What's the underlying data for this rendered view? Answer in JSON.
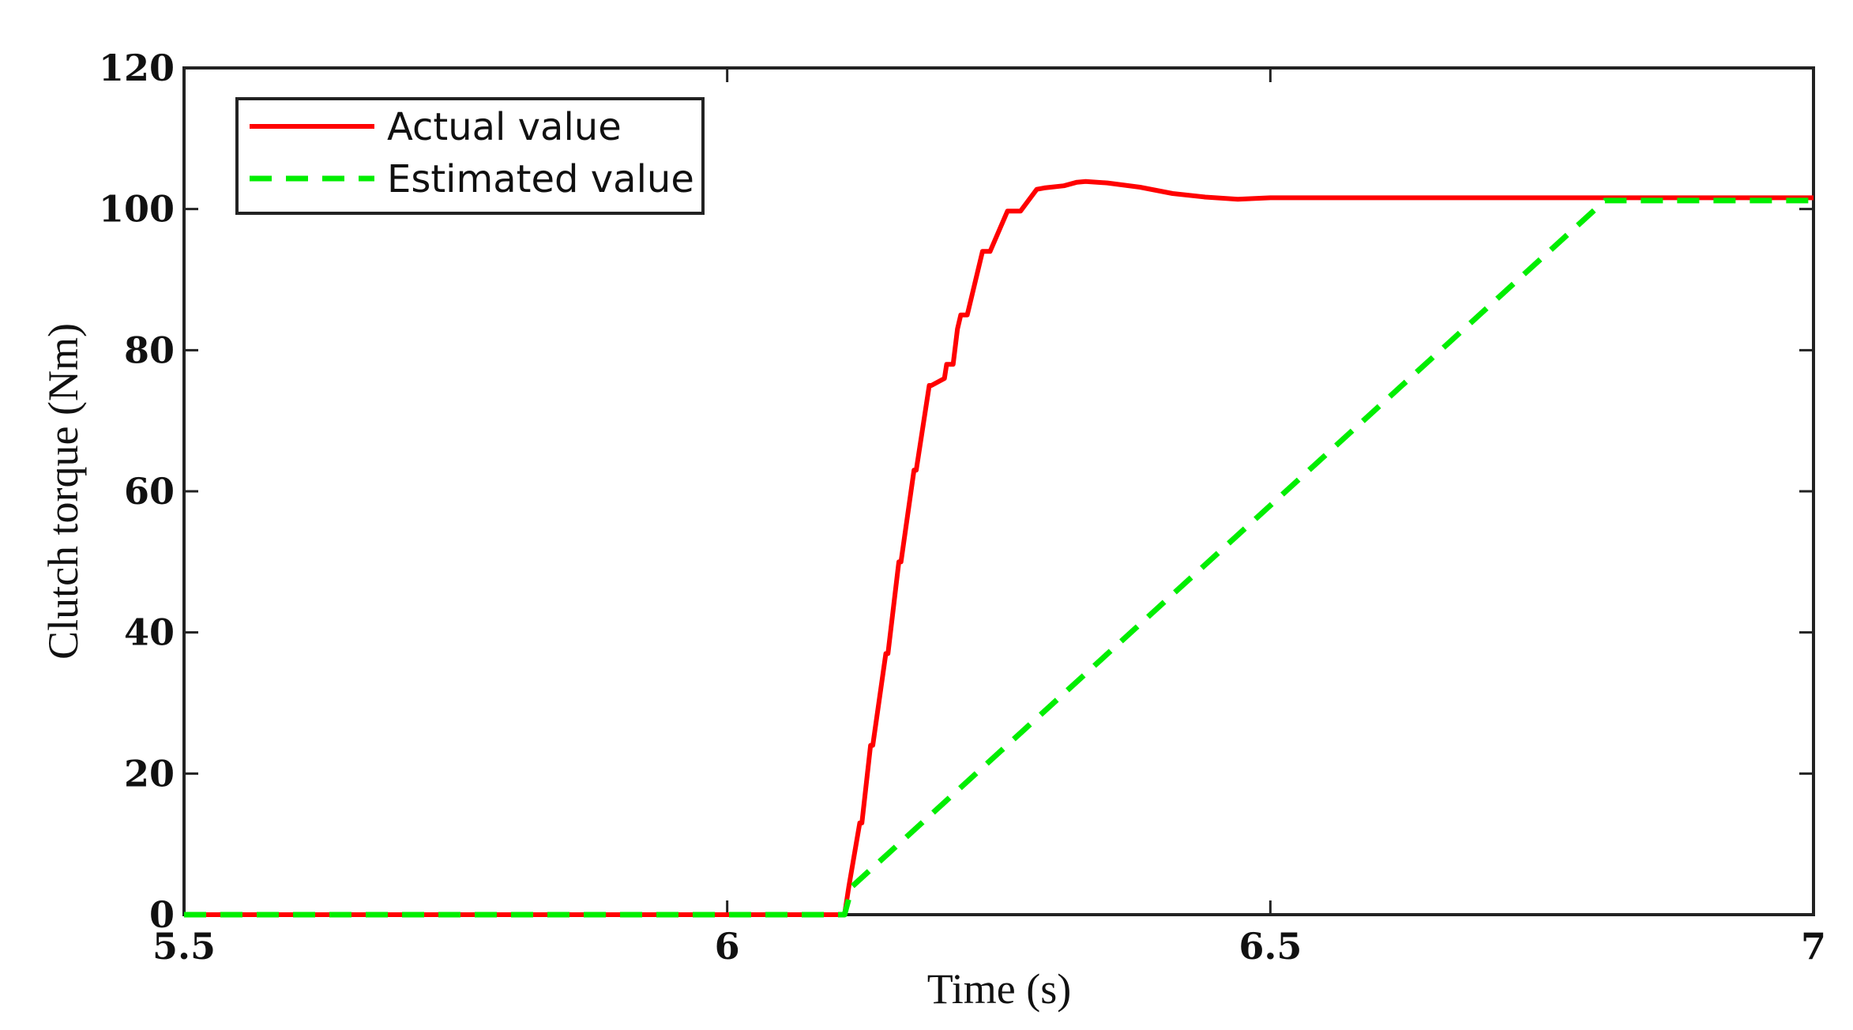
{
  "chart_data": {
    "type": "line",
    "title": "",
    "xlabel": "Time (s)",
    "ylabel": "Clutch torque (Nm)",
    "xlim": [
      5.5,
      7
    ],
    "ylim": [
      0,
      120
    ],
    "xticks": [
      5.5,
      6,
      6.5,
      7
    ],
    "xtick_labels": [
      "5.5",
      "6",
      "6.5",
      "7"
    ],
    "yticks": [
      0,
      20,
      40,
      60,
      80,
      100,
      120
    ],
    "ytick_labels": [
      "0",
      "20",
      "40",
      "60",
      "80",
      "100",
      "120"
    ],
    "grid": false,
    "legend_position": "top-left",
    "series": [
      {
        "name": "Actual value",
        "color": "#ff0000",
        "style": "solid",
        "x": [
          5.5,
          6.108,
          6.112,
          6.122,
          6.124,
          6.132,
          6.134,
          6.146,
          6.148,
          6.158,
          6.16,
          6.172,
          6.174,
          6.186,
          6.188,
          6.2,
          6.202,
          6.208,
          6.212,
          6.215,
          6.221,
          6.235,
          6.242,
          6.258,
          6.27,
          6.285,
          6.292,
          6.31,
          6.322,
          6.33,
          6.35,
          6.38,
          6.41,
          6.44,
          6.47,
          6.5,
          6.53,
          6.56,
          7.0
        ],
        "y": [
          0,
          0,
          4,
          13,
          13,
          24,
          24,
          37,
          37,
          50,
          50,
          63,
          63,
          75,
          75,
          76,
          78,
          78,
          83,
          85,
          85,
          94,
          94,
          99.7,
          99.7,
          102.8,
          103,
          103.3,
          103.8,
          103.9,
          103.7,
          103.1,
          102.2,
          101.7,
          101.4,
          101.6,
          101.6,
          101.6,
          101.6
        ]
      },
      {
        "name": "Estimated value",
        "color": "#00ee00",
        "style": "dashed",
        "x": [
          5.5,
          6.108,
          6.115,
          6.808,
          7.0
        ],
        "y": [
          0,
          0,
          4,
          101.2,
          101.2
        ]
      }
    ]
  }
}
